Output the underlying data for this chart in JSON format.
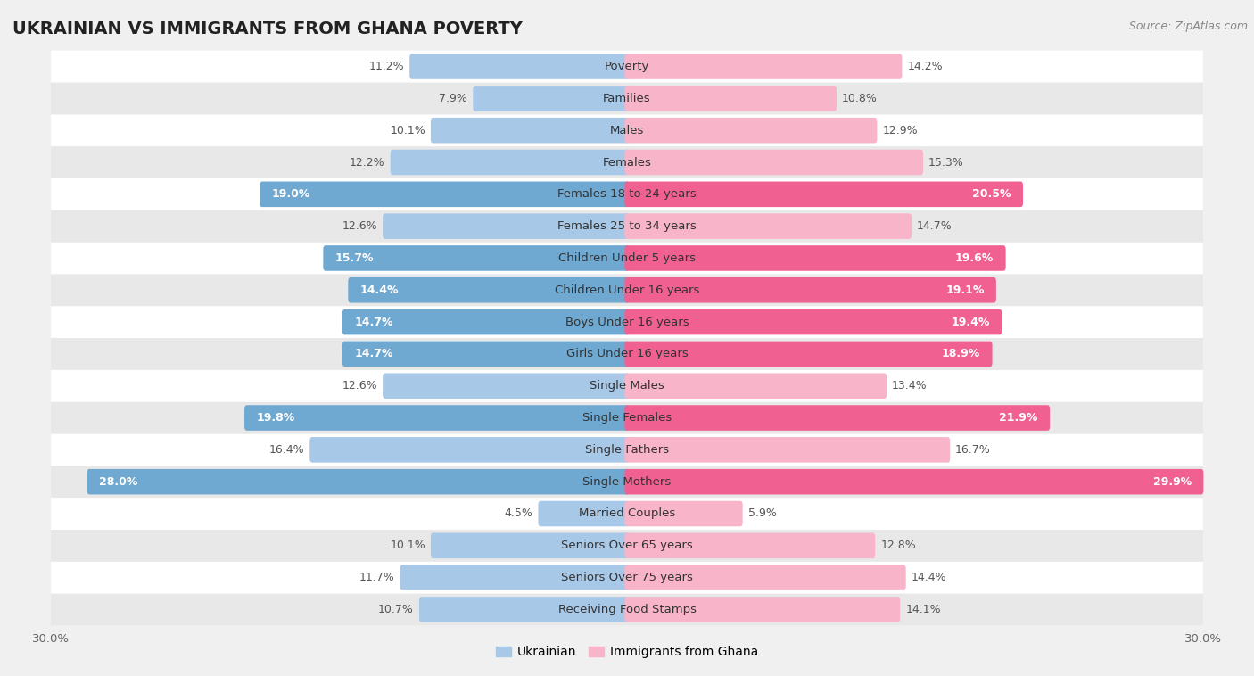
{
  "title": "UKRAINIAN VS IMMIGRANTS FROM GHANA POVERTY",
  "source": "Source: ZipAtlas.com",
  "categories": [
    "Poverty",
    "Families",
    "Males",
    "Females",
    "Females 18 to 24 years",
    "Females 25 to 34 years",
    "Children Under 5 years",
    "Children Under 16 years",
    "Boys Under 16 years",
    "Girls Under 16 years",
    "Single Males",
    "Single Females",
    "Single Fathers",
    "Single Mothers",
    "Married Couples",
    "Seniors Over 65 years",
    "Seniors Over 75 years",
    "Receiving Food Stamps"
  ],
  "ukrainian": [
    11.2,
    7.9,
    10.1,
    12.2,
    19.0,
    12.6,
    15.7,
    14.4,
    14.7,
    14.7,
    12.6,
    19.8,
    16.4,
    28.0,
    4.5,
    10.1,
    11.7,
    10.7
  ],
  "ghana": [
    14.2,
    10.8,
    12.9,
    15.3,
    20.5,
    14.7,
    19.6,
    19.1,
    19.4,
    18.9,
    13.4,
    21.9,
    16.7,
    29.9,
    5.9,
    12.8,
    14.4,
    14.1
  ],
  "ukrainian_color_normal": "#a8c8e8",
  "ghana_color_normal": "#f8b4c8",
  "ukrainian_color_highlight": "#6fa8d0",
  "ghana_color_highlight": "#f06090",
  "background_color": "#f0f0f0",
  "row_color_light": "#ffffff",
  "row_color_dark": "#e8e8e8",
  "xlim": 30.0,
  "bar_height": 0.55,
  "label_fontsize": 9.0,
  "cat_fontsize": 9.5,
  "title_fontsize": 14,
  "source_fontsize": 9,
  "highlight_indices": [
    4,
    6,
    7,
    8,
    9,
    11,
    13
  ],
  "label_inside_threshold": 18.0
}
